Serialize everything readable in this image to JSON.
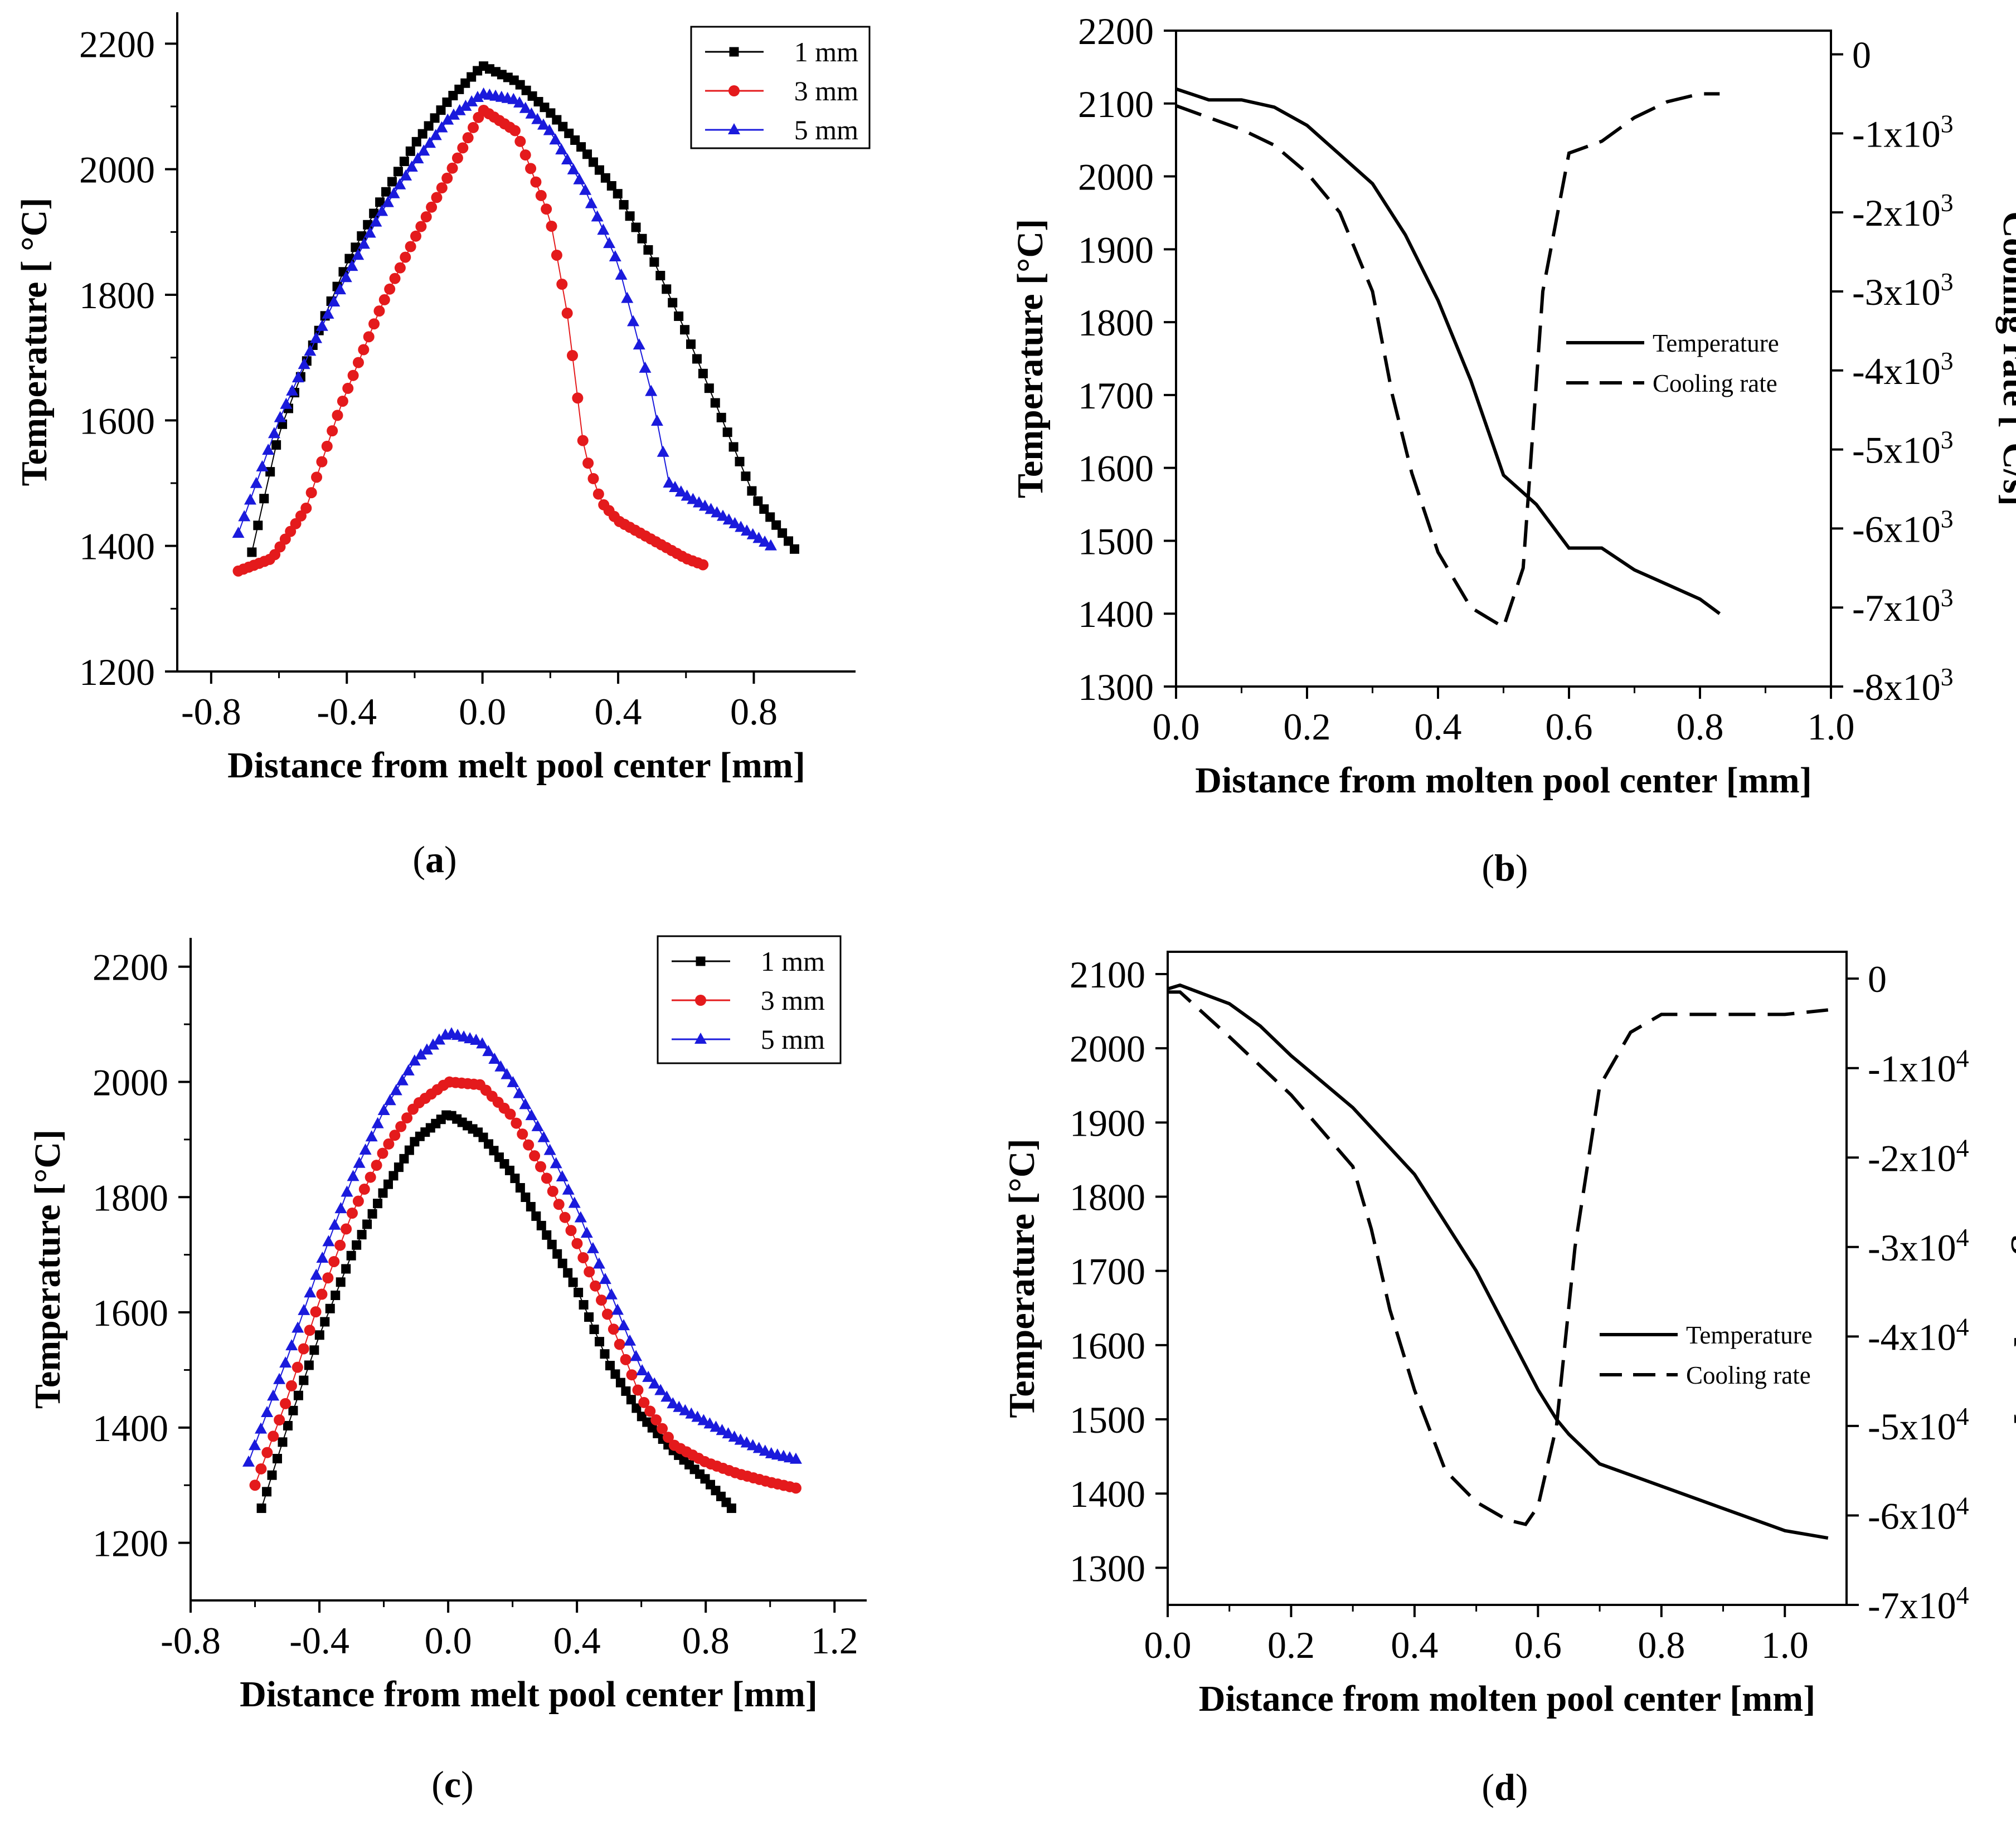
{
  "chart_data": [
    {
      "panel": "a",
      "type": "scatter",
      "xlabel": "Distance from melt pool center [mm]",
      "ylabel": "Temperature [ °C]",
      "xlim": [
        -0.9,
        1.1
      ],
      "ylim": [
        1200,
        2250
      ],
      "xticks": [
        "-0.8",
        "-0.4",
        "0.0",
        "0.4",
        "0.8"
      ],
      "yticks": [
        "1200",
        "1400",
        "1600",
        "1800",
        "2000",
        "2200"
      ],
      "legend": "top-right",
      "series": [
        {
          "name": "1 mm",
          "color": "#000000",
          "marker": "square",
          "x": [
            -0.68,
            -0.6,
            -0.5,
            -0.4,
            -0.3,
            -0.2,
            -0.1,
            0.0,
            0.1,
            0.2,
            0.3,
            0.4,
            0.5,
            0.6,
            0.7,
            0.8,
            0.92
          ],
          "y": [
            1390,
            1580,
            1720,
            1850,
            1950,
            2040,
            2110,
            2165,
            2140,
            2090,
            2030,
            1960,
            1860,
            1740,
            1610,
            1480,
            1395
          ]
        },
        {
          "name": "3 mm",
          "color": "#e41a1c",
          "marker": "circle",
          "x": [
            -0.72,
            -0.62,
            -0.52,
            -0.42,
            -0.3,
            -0.2,
            -0.1,
            0.0,
            0.1,
            0.2,
            0.25,
            0.3,
            0.35,
            0.4,
            0.5,
            0.6,
            0.65
          ],
          "y": [
            1360,
            1380,
            1460,
            1620,
            1780,
            1890,
            1990,
            2095,
            2060,
            1920,
            1770,
            1550,
            1470,
            1440,
            1410,
            1380,
            1370
          ]
        },
        {
          "name": "5 mm",
          "color": "#1a1adc",
          "marker": "triangle",
          "x": [
            -0.72,
            -0.6,
            -0.5,
            -0.4,
            -0.3,
            -0.2,
            -0.1,
            0.0,
            0.1,
            0.2,
            0.3,
            0.4,
            0.5,
            0.55,
            0.6,
            0.7,
            0.85
          ],
          "y": [
            1420,
            1600,
            1720,
            1830,
            1930,
            2010,
            2080,
            2120,
            2110,
            2060,
            1970,
            1850,
            1640,
            1500,
            1480,
            1450,
            1400
          ]
        }
      ]
    },
    {
      "panel": "b",
      "type": "line",
      "xlabel": "Distance from molten pool center [mm]",
      "ylabel": "Temperature [°C]",
      "y2label": "Cooling rate [°C/s]",
      "xlim": [
        0.0,
        1.0
      ],
      "ylim": [
        1300,
        2200
      ],
      "y2lim": [
        -8000,
        300
      ],
      "xticks": [
        "0.0",
        "0.2",
        "0.4",
        "0.6",
        "0.8",
        "1.0"
      ],
      "yticks": [
        "1300",
        "1400",
        "1500",
        "1600",
        "1700",
        "1800",
        "1900",
        "2000",
        "2100",
        "2200"
      ],
      "y2ticks": [
        {
          "mantissa": "0",
          "exp": ""
        },
        {
          "mantissa": "-1x10",
          "exp": "3"
        },
        {
          "mantissa": "-2x10",
          "exp": "3"
        },
        {
          "mantissa": "-3x10",
          "exp": "3"
        },
        {
          "mantissa": "-4x10",
          "exp": "3"
        },
        {
          "mantissa": "-5x10",
          "exp": "3"
        },
        {
          "mantissa": "-6x10",
          "exp": "3"
        },
        {
          "mantissa": "-7x10",
          "exp": "3"
        },
        {
          "mantissa": "-8x10",
          "exp": "3"
        }
      ],
      "legend": "right",
      "series": [
        {
          "name": "Temperature",
          "style": "solid",
          "axis": "left",
          "x": [
            0.0,
            0.05,
            0.1,
            0.15,
            0.2,
            0.25,
            0.3,
            0.35,
            0.4,
            0.45,
            0.5,
            0.55,
            0.6,
            0.65,
            0.7,
            0.75,
            0.8,
            0.83
          ],
          "y": [
            2120,
            2105,
            2105,
            2095,
            2070,
            2030,
            1990,
            1920,
            1830,
            1720,
            1590,
            1550,
            1490,
            1490,
            1460,
            1440,
            1420,
            1400
          ]
        },
        {
          "name": "Cooling rate",
          "style": "dashed",
          "axis": "right",
          "x": [
            0.0,
            0.05,
            0.1,
            0.15,
            0.2,
            0.25,
            0.3,
            0.33,
            0.36,
            0.4,
            0.45,
            0.5,
            0.53,
            0.56,
            0.6,
            0.65,
            0.7,
            0.75,
            0.8,
            0.83
          ],
          "y": [
            -650,
            -800,
            -950,
            -1150,
            -1500,
            -2000,
            -3000,
            -4300,
            -5300,
            -6300,
            -7000,
            -7250,
            -6500,
            -3000,
            -1250,
            -1100,
            -800,
            -600,
            -500,
            -500
          ]
        }
      ]
    },
    {
      "panel": "c",
      "type": "scatter",
      "xlabel": "Distance from melt pool center [mm]",
      "ylabel": "Temperature [°C]",
      "xlim": [
        -0.8,
        1.3
      ],
      "ylim": [
        1100,
        2250
      ],
      "xticks": [
        "-0.8",
        "-0.4",
        "0.0",
        "0.4",
        "0.8",
        "1.2"
      ],
      "yticks": [
        "1200",
        "1400",
        "1600",
        "1800",
        "2000",
        "2200"
      ],
      "legend": "top-right",
      "series": [
        {
          "name": "1 mm",
          "color": "#000000",
          "marker": "square",
          "x": [
            -0.58,
            -0.5,
            -0.4,
            -0.3,
            -0.2,
            -0.1,
            0.0,
            0.1,
            0.2,
            0.3,
            0.4,
            0.5,
            0.6,
            0.7,
            0.8,
            0.88
          ],
          "y": [
            1260,
            1400,
            1560,
            1700,
            1810,
            1900,
            1945,
            1910,
            1840,
            1740,
            1640,
            1510,
            1420,
            1360,
            1310,
            1260
          ]
        },
        {
          "name": "3 mm",
          "color": "#e41a1c",
          "marker": "circle",
          "x": [
            -0.6,
            -0.5,
            -0.4,
            -0.3,
            -0.2,
            -0.1,
            0.0,
            0.1,
            0.2,
            0.3,
            0.4,
            0.5,
            0.6,
            0.7,
            0.8,
            0.9,
            1.0,
            1.08
          ],
          "y": [
            1300,
            1450,
            1620,
            1770,
            1880,
            1960,
            2000,
            1995,
            1940,
            1840,
            1720,
            1590,
            1450,
            1370,
            1340,
            1320,
            1305,
            1295
          ]
        },
        {
          "name": "5 mm",
          "color": "#1a1adc",
          "marker": "triangle",
          "x": [
            -0.62,
            -0.5,
            -0.4,
            -0.3,
            -0.2,
            -0.1,
            0.0,
            0.1,
            0.2,
            0.3,
            0.4,
            0.5,
            0.6,
            0.7,
            0.8,
            0.9,
            1.0,
            1.08
          ],
          "y": [
            1340,
            1520,
            1680,
            1830,
            1950,
            2040,
            2085,
            2070,
            2000,
            1900,
            1780,
            1640,
            1500,
            1440,
            1410,
            1380,
            1355,
            1345
          ]
        }
      ]
    },
    {
      "panel": "d",
      "type": "line",
      "xlabel": "Distance from molten pool center [mm]",
      "ylabel": "Temperature [°C]",
      "y2label": "Cooling rate [°C/s]",
      "xlim": [
        0.0,
        1.1
      ],
      "ylim": [
        1250,
        2130
      ],
      "y2lim": [
        -70000,
        3000
      ],
      "xticks": [
        "0.0",
        "0.2",
        "0.4",
        "0.6",
        "0.8",
        "1.0"
      ],
      "yticks": [
        "1300",
        "1400",
        "1500",
        "1600",
        "1700",
        "1800",
        "1900",
        "2000",
        "2100"
      ],
      "y2ticks": [
        {
          "mantissa": "0",
          "exp": ""
        },
        {
          "mantissa": "-1x10",
          "exp": "4"
        },
        {
          "mantissa": "-2x10",
          "exp": "4"
        },
        {
          "mantissa": "-3x10",
          "exp": "4"
        },
        {
          "mantissa": "-4x10",
          "exp": "4"
        },
        {
          "mantissa": "-5x10",
          "exp": "4"
        },
        {
          "mantissa": "-6x10",
          "exp": "4"
        },
        {
          "mantissa": "-7x10",
          "exp": "4"
        }
      ],
      "legend": "right",
      "series": [
        {
          "name": "Temperature",
          "style": "solid",
          "axis": "left",
          "x": [
            0.0,
            0.02,
            0.1,
            0.15,
            0.2,
            0.3,
            0.4,
            0.5,
            0.55,
            0.6,
            0.63,
            0.65,
            0.7,
            0.8,
            0.9,
            1.0,
            1.07
          ],
          "y": [
            2080,
            2085,
            2060,
            2030,
            1990,
            1920,
            1830,
            1700,
            1620,
            1540,
            1500,
            1480,
            1440,
            1410,
            1380,
            1350,
            1340
          ]
        },
        {
          "name": "Cooling rate",
          "style": "dashed",
          "axis": "right",
          "x": [
            0.0,
            0.02,
            0.1,
            0.2,
            0.3,
            0.33,
            0.36,
            0.4,
            0.45,
            0.5,
            0.55,
            0.58,
            0.6,
            0.63,
            0.66,
            0.7,
            0.75,
            0.8,
            0.9,
            1.0,
            1.07
          ],
          "y": [
            -1500,
            -1500,
            -6500,
            -13000,
            -21000,
            -28000,
            -37000,
            -46000,
            -55000,
            -58500,
            -60500,
            -61000,
            -59000,
            -50000,
            -30000,
            -12000,
            -6000,
            -4000,
            -4000,
            -4000,
            -3500
          ]
        }
      ]
    }
  ],
  "panel_labels": [
    {
      "open": "(",
      "letter": "a",
      "close": ")"
    },
    {
      "open": "(",
      "letter": "b",
      "close": ")"
    },
    {
      "open": "(",
      "letter": "c",
      "close": ")"
    },
    {
      "open": "(",
      "letter": "d",
      "close": ")"
    }
  ]
}
